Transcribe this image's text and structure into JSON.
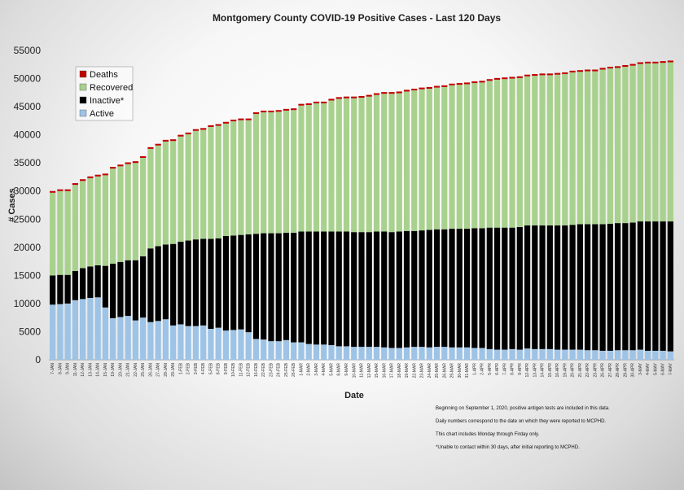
{
  "chart_data": {
    "type": "bar",
    "stacked": true,
    "title": "Montgomery County COVID-19 Positive Cases - Last  120 Days",
    "xlabel": "Date",
    "ylabel": "# Cases",
    "ylim": [
      0,
      55000
    ],
    "yticks": [
      0,
      5000,
      10000,
      15000,
      20000,
      25000,
      30000,
      35000,
      40000,
      45000,
      50000,
      55000
    ],
    "grid": false,
    "legend_position": "top-left",
    "categories": [
      "7-JAN",
      "8-JAN",
      "9-JAN",
      "11-JAN",
      "12-JAN",
      "13-JAN",
      "14-JAN",
      "15-JAN",
      "19-JAN",
      "20-JAN",
      "21-JAN",
      "22-JAN",
      "25-JAN",
      "26-JAN",
      "27-JAN",
      "28-JAN",
      "29-JAN",
      "1-FEB",
      "2-FEB",
      "3-FEB",
      "4-FEB",
      "5-FEB",
      "8-FEB",
      "9-FEB",
      "10-FEB",
      "11-FEB",
      "12-FEB",
      "16-FEB",
      "22-FEB",
      "23-FEB",
      "24-FEB",
      "25-FEB",
      "26-FEB",
      "1-MAR",
      "2-MAR",
      "3-MAR",
      "4-MAR",
      "5-MAR",
      "8-MAR",
      "9-MAR",
      "10-MAR",
      "11-MAR",
      "12-MAR",
      "15-MAR",
      "16-MAR",
      "17-MAR",
      "18-MAR",
      "19-MAR",
      "22-MAR",
      "23-MAR",
      "24-MAR",
      "25-MAR",
      "26-MAR",
      "29-MAR",
      "30-MAR",
      "31-MAR",
      "1-APR",
      "2-APR",
      "5-APR",
      "6-APR",
      "7-APR",
      "8-APR",
      "9-APR",
      "12-APR",
      "13-APR",
      "14-APR",
      "15-APR",
      "16-APR",
      "19-APR",
      "20-APR",
      "21-APR",
      "22-APR",
      "23-APR",
      "26-APR",
      "27-APR",
      "28-APR",
      "29-APR",
      "30-APR",
      "3-MAY",
      "4-MAY",
      "5-MAY",
      "6-MAY",
      "7-MAY"
    ],
    "series": [
      {
        "name": "Active",
        "color": "#9dc3e6",
        "values": [
          9800,
          9900,
          10000,
          10600,
          10800,
          11000,
          11100,
          9300,
          7400,
          7600,
          7800,
          7000,
          7500,
          6700,
          6900,
          7200,
          6100,
          6300,
          6000,
          6000,
          6100,
          5500,
          5700,
          5200,
          5300,
          5400,
          4900,
          3700,
          3600,
          3300,
          3300,
          3500,
          3100,
          3100,
          2800,
          2700,
          2700,
          2600,
          2400,
          2400,
          2300,
          2300,
          2300,
          2300,
          2200,
          2100,
          2100,
          2200,
          2300,
          2300,
          2200,
          2300,
          2300,
          2200,
          2200,
          2200,
          2100,
          2100,
          1900,
          1800,
          1800,
          1900,
          1800,
          2000,
          1900,
          1900,
          1900,
          1800,
          1800,
          1800,
          1800,
          1700,
          1700,
          1600,
          1600,
          1700,
          1700,
          1700,
          1800,
          1600,
          1600,
          1600,
          1500
        ]
      },
      {
        "name": "Inactive*",
        "color": "#000000",
        "values": [
          5200,
          5200,
          5100,
          5200,
          5500,
          5600,
          5700,
          7400,
          9700,
          9800,
          9900,
          10700,
          10900,
          13100,
          13300,
          13300,
          14500,
          14700,
          15200,
          15400,
          15400,
          16000,
          15900,
          16800,
          16800,
          16800,
          17400,
          18700,
          18900,
          19200,
          19200,
          19100,
          19500,
          19700,
          20000,
          20100,
          20100,
          20200,
          20400,
          20400,
          20400,
          20400,
          20400,
          20500,
          20600,
          20600,
          20700,
          20700,
          20600,
          20700,
          20900,
          20900,
          20900,
          21100,
          21100,
          21100,
          21300,
          21300,
          21600,
          21700,
          21700,
          21600,
          21800,
          21900,
          22000,
          22000,
          22000,
          22100,
          22100,
          22200,
          22300,
          22400,
          22400,
          22500,
          22600,
          22600,
          22600,
          22700,
          22800,
          23000,
          23000,
          23000,
          23100
        ]
      },
      {
        "name": "Recovered",
        "color": "#a9d18e",
        "values": [
          14700,
          14900,
          14900,
          15300,
          15500,
          15700,
          15800,
          16100,
          16900,
          17000,
          17100,
          17300,
          17500,
          17700,
          17900,
          18300,
          18300,
          18700,
          18900,
          19300,
          19400,
          19900,
          20000,
          20000,
          20300,
          20400,
          20300,
          21300,
          21500,
          21500,
          21600,
          21700,
          21800,
          22400,
          22500,
          22800,
          22800,
          23300,
          23600,
          23700,
          23800,
          23900,
          24100,
          24300,
          24500,
          24600,
          24600,
          24800,
          25000,
          25100,
          25100,
          25200,
          25300,
          25500,
          25600,
          25700,
          25800,
          25900,
          26100,
          26300,
          26400,
          26500,
          26500,
          26500,
          26600,
          26700,
          26700,
          26800,
          26900,
          27100,
          27100,
          27200,
          27200,
          27500,
          27600,
          27600,
          27800,
          27900,
          28000,
          28100,
          28100,
          28200,
          28300
        ]
      },
      {
        "name": "Deaths",
        "color": "#c00000",
        "values": [
          300,
          300,
          300,
          300,
          300,
          300,
          300,
          300,
          300,
          300,
          300,
          300,
          300,
          300,
          300,
          300,
          300,
          300,
          300,
          300,
          300,
          300,
          300,
          300,
          300,
          300,
          300,
          300,
          300,
          300,
          300,
          300,
          300,
          300,
          300,
          300,
          300,
          300,
          300,
          300,
          300,
          300,
          300,
          300,
          300,
          300,
          300,
          300,
          300,
          300,
          300,
          300,
          300,
          300,
          300,
          300,
          300,
          300,
          300,
          300,
          300,
          300,
          300,
          300,
          300,
          300,
          300,
          300,
          300,
          300,
          300,
          300,
          300,
          300,
          300,
          300,
          300,
          300,
          300,
          300,
          300,
          300,
          300
        ]
      }
    ],
    "legend_order": [
      "Deaths",
      "Recovered",
      "Inactive*",
      "Active"
    ],
    "notes": [
      "Beginning on September 1, 2020, positive antigen tests are included in this data.",
      "Daily numbers correspond to the date on which they were reported to MCPHD.",
      "This chart includes Monday through Firday only.",
      "*Unable to contact within 30 days, after initial reporting to MCPHD."
    ]
  }
}
